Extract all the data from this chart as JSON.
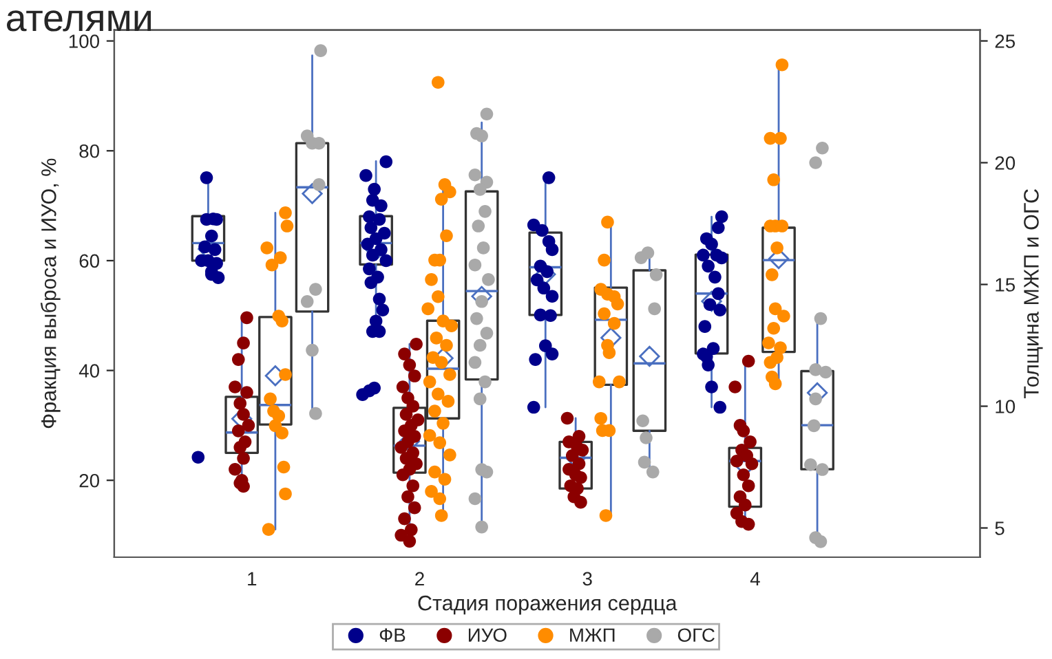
{
  "chart_data": {
    "type": "box",
    "title": "ателями",
    "xlabel": "Стадия поражения сердца",
    "ylabel": "Фракция выброса и ИУО, %",
    "y2label": "Толщина МЖП и ОГС",
    "xlim": [
      0.18,
      5.34
    ],
    "xticks": [
      1,
      2,
      3,
      4
    ],
    "ylim": [
      6,
      102
    ],
    "yticks": [
      20,
      40,
      60,
      80,
      100
    ],
    "y2lim": [
      3.8,
      25.45
    ],
    "y2ticks": [
      5,
      10,
      15,
      20,
      25
    ],
    "grid": false,
    "legend": "bottom",
    "marker": "circle",
    "series": [
      {
        "color": "#333333",
        "x": [
          0.74,
          1.74,
          2.75,
          3.74
        ],
        "boxes": [
          {
            "low": 56.9,
            "q1": 60.0,
            "median": 63.2,
            "q3": 68.1,
            "high": 75.1,
            "mean": 62.1
          },
          {
            "low": 47.1,
            "q1": 59.3,
            "median": 63.2,
            "q3": 68.1,
            "high": 78.1,
            "mean": 61.9
          },
          {
            "low": 33.3,
            "q1": 50.1,
            "median": 58.8,
            "q3": 65.1,
            "high": 75.1,
            "mean": 57.5
          },
          {
            "low": 33.3,
            "q1": 43.1,
            "median": 54.0,
            "q3": 61.1,
            "high": 68.0,
            "mean": 52.6
          }
        ]
      },
      {
        "color": "#333333",
        "x": [
          0.94,
          1.94,
          2.93,
          3.94
        ],
        "boxes": [
          {
            "low": 18.9,
            "q1": 25.0,
            "median": 28.7,
            "q3": 35.2,
            "high": 49.6,
            "mean": 31.2
          },
          {
            "low": 8.9,
            "q1": 21.4,
            "median": 26.3,
            "q3": 33.2,
            "high": 44.8,
            "mean": 27.1
          },
          {
            "low": 16.0,
            "q1": 18.5,
            "median": 24.1,
            "q3": 27.0,
            "high": 31.3,
            "mean": 24.1
          },
          {
            "low": 12.0,
            "q1": 15.2,
            "median": 23.5,
            "q3": 25.9,
            "high": 41.7,
            "mean": 22.7
          }
        ]
      },
      {
        "axis": "y2",
        "color": "#333333",
        "x": [
          1.14,
          2.14,
          3.14,
          4.14
        ],
        "boxes": [
          {
            "low": 4.94,
            "q1": 9.25,
            "median": 10.05,
            "q3": 13.66,
            "high": 17.94,
            "mean": 11.25
          },
          {
            "low": 5.51,
            "q1": 9.5,
            "median": 11.54,
            "q3": 13.51,
            "high": 19.07,
            "mean": 11.97
          },
          {
            "low": 5.51,
            "q1": 10.88,
            "median": 13.55,
            "q3": 14.87,
            "high": 17.56,
            "mean": 12.81
          },
          {
            "low": 10.92,
            "q1": 12.23,
            "median": 16.0,
            "q3": 17.33,
            "high": 24.02,
            "mean": 16.06
          }
        ]
      },
      {
        "axis": "y2",
        "color": "#333333",
        "x": [
          1.36,
          2.37,
          3.37,
          4.37
        ],
        "boxes": [
          {
            "low": 9.9,
            "q1": 13.89,
            "median": 18.99,
            "q3": 20.8,
            "high": 24.4,
            "mean": 18.73
          },
          {
            "low": 5.04,
            "q1": 11.1,
            "median": 14.73,
            "q3": 18.82,
            "high": 21.65,
            "mean": 14.51
          },
          {
            "low": 7.3,
            "q1": 8.99,
            "median": 11.76,
            "q3": 15.58,
            "high": 16.28,
            "mean": 12.05
          },
          {
            "low": 4.56,
            "q1": 7.41,
            "median": 9.22,
            "q3": 11.44,
            "high": 13.66,
            "mean": 10.55
          }
        ]
      },
      {
        "type": "scatter",
        "name": "ФВ",
        "color": "#00008b",
        "x": [
          0.73,
          0.73,
          0.77,
          0.79,
          0.76,
          0.72,
          0.78,
          0.74,
          0.7,
          0.79,
          0.76,
          0.8,
          0.76,
          0.68,
          1.8,
          1.68,
          1.73,
          1.72,
          1.77,
          1.7,
          1.76,
          1.71,
          1.79,
          1.74,
          1.69,
          1.77,
          1.72,
          1.8,
          1.7,
          1.75,
          1.71,
          1.76,
          1.78,
          1.74,
          1.72,
          1.76,
          1.66,
          1.7,
          1.73,
          2.77,
          2.68,
          2.73,
          2.77,
          2.79,
          2.72,
          2.76,
          2.7,
          2.74,
          2.79,
          2.78,
          2.72,
          2.75,
          2.69,
          2.79,
          2.68,
          3.8,
          3.78,
          3.71,
          3.74,
          3.69,
          3.77,
          3.8,
          3.72,
          3.76,
          3.78,
          3.73,
          3.79,
          3.7,
          3.75,
          3.69,
          3.71,
          3.72,
          3.74,
          3.79
        ],
        "values": [
          75.1,
          67.5,
          67.6,
          67.5,
          64.5,
          62.5,
          62,
          60,
          60,
          59.5,
          58,
          56.9,
          57.5,
          24.2,
          78,
          75.5,
          73,
          71,
          70,
          68,
          67.5,
          66,
          65,
          64,
          63,
          62,
          61,
          60,
          58.5,
          57,
          56,
          53,
          51,
          49,
          47.1,
          47.1,
          35.6,
          36.3,
          36.8,
          75.1,
          66.5,
          65.5,
          63.5,
          62,
          59,
          58,
          56.5,
          55,
          53.5,
          50,
          50.1,
          44.5,
          42,
          43,
          33.3,
          68,
          66,
          64,
          63,
          61,
          61,
          60.5,
          59,
          57,
          54,
          52,
          51,
          48,
          44,
          43,
          42.5,
          41,
          37,
          33.3
        ]
      },
      {
        "type": "scatter",
        "name": "ИУО",
        "color": "#8b0000",
        "x": [
          0.97,
          0.95,
          0.92,
          0.9,
          0.97,
          0.93,
          0.95,
          0.98,
          0.92,
          0.96,
          0.93,
          0.95,
          0.9,
          0.94,
          0.93,
          0.95,
          1.98,
          1.91,
          1.94,
          1.97,
          1.9,
          1.93,
          1.96,
          1.92,
          1.99,
          1.95,
          1.91,
          1.97,
          1.93,
          1.89,
          1.96,
          1.92,
          1.98,
          1.94,
          1.9,
          1.96,
          1.93,
          1.97,
          1.91,
          1.95,
          1.89,
          1.94,
          2.88,
          2.95,
          2.89,
          2.94,
          2.97,
          2.91,
          2.95,
          2.89,
          2.93,
          2.96,
          2.9,
          2.94,
          2.92,
          2.96,
          3.96,
          3.88,
          3.91,
          3.93,
          3.97,
          3.92,
          3.95,
          3.89,
          3.98,
          3.93,
          3.96,
          3.91,
          3.94,
          3.89,
          3.92,
          3.96
        ],
        "values": [
          49.6,
          45,
          42,
          37,
          36,
          34,
          32,
          30,
          29,
          27,
          26,
          24,
          22,
          20,
          19.5,
          18.9,
          44.8,
          43,
          41,
          39,
          37,
          35,
          33.5,
          32,
          31,
          30,
          29,
          28,
          27,
          26,
          25,
          24,
          23,
          22,
          21,
          19,
          17,
          15,
          13,
          11,
          10,
          8.9,
          31.3,
          28,
          27,
          26,
          25.5,
          24.5,
          23,
          22,
          21,
          20.5,
          19,
          18.5,
          17,
          16,
          41.7,
          37,
          30,
          29,
          27,
          25.5,
          24.5,
          23.5,
          23,
          21,
          19,
          17,
          15.5,
          14,
          12.5,
          12
        ]
      },
      {
        "type": "scatter",
        "name": "МЖП",
        "color": "#ff8c00",
        "axis": "y2",
        "x": [
          1.2,
          1.21,
          1.09,
          1.12,
          1.17,
          1.16,
          1.18,
          1.2,
          1.11,
          1.13,
          1.16,
          1.14,
          1.18,
          1.19,
          1.2,
          1.1,
          2.11,
          2.15,
          2.18,
          2.13,
          2.16,
          2.09,
          2.12,
          2.07,
          2.11,
          2.05,
          2.14,
          2.19,
          2.1,
          2.16,
          2.08,
          2.13,
          2.18,
          2.06,
          2.11,
          2.17,
          2.09,
          2.14,
          2.06,
          2.12,
          2.18,
          2.09,
          2.15,
          2.07,
          2.12,
          2.13,
          3.12,
          3.1,
          3.08,
          3.12,
          3.16,
          3.18,
          3.1,
          3.16,
          3.12,
          3.13,
          3.07,
          3.19,
          3.08,
          3.09,
          3.13,
          3.11,
          4.16,
          4.09,
          4.15,
          4.11,
          4.09,
          4.12,
          4.16,
          4.13,
          4.1,
          4.12,
          4.17,
          4.11,
          4.08,
          4.15,
          4.13,
          4.09,
          4.1,
          4.12
        ],
        "values": [
          17.94,
          17.4,
          16.5,
          15.8,
          16.1,
          13.7,
          13.5,
          11.3,
          10.3,
          9.8,
          9.6,
          9.2,
          8.9,
          7.5,
          6.4,
          4.94,
          23.3,
          19.1,
          18.8,
          18.5,
          17,
          16,
          16,
          15.2,
          14.5,
          14,
          13.5,
          13.3,
          12.8,
          12.5,
          12,
          11.8,
          11.3,
          11,
          10.5,
          10.2,
          9.8,
          9.3,
          8.8,
          8.5,
          8,
          7.3,
          7,
          6.5,
          6.2,
          5.51,
          17.56,
          16,
          14.8,
          14.6,
          14.5,
          14.2,
          13.8,
          13.4,
          12.5,
          12.2,
          11,
          11,
          9.5,
          9,
          9,
          5.51,
          24.02,
          21,
          21,
          19.3,
          17.4,
          17.4,
          17.4,
          16.5,
          15.4,
          14,
          13.7,
          13.2,
          12.6,
          12.4,
          12,
          11.8,
          11.2,
          10.92
        ]
      },
      {
        "type": "scatter",
        "name": "ОГС",
        "color": "#a9a9a9",
        "axis": "y2",
        "x": [
          1.41,
          1.33,
          1.36,
          1.4,
          1.4,
          1.38,
          1.33,
          1.36,
          1.38,
          2.4,
          2.34,
          2.37,
          2.33,
          2.4,
          2.36,
          2.39,
          2.35,
          2.38,
          2.33,
          2.41,
          2.37,
          2.34,
          2.4,
          2.36,
          2.33,
          2.39,
          2.36,
          2.4,
          2.37,
          2.33,
          2.37,
          3.32,
          3.36,
          3.41,
          3.4,
          3.33,
          3.35,
          3.34,
          3.39,
          4.4,
          4.36,
          4.39,
          4.36,
          4.42,
          4.36,
          4.35,
          4.33,
          4.4,
          4.36,
          4.39
        ],
        "values": [
          24.6,
          21.1,
          20.8,
          20.8,
          19.1,
          14.8,
          14.3,
          12.3,
          9.7,
          22,
          21.2,
          21.1,
          19.5,
          19.2,
          18.9,
          18,
          17.4,
          16.5,
          15.8,
          15.2,
          14.3,
          13.6,
          13,
          12.5,
          11.8,
          11,
          10.3,
          7.3,
          7.4,
          6.2,
          5.04,
          16.1,
          16.3,
          15.4,
          14.0,
          9.4,
          8.7,
          7.7,
          7.3,
          20.6,
          20.0,
          13.6,
          11.5,
          11.4,
          10.3,
          9.2,
          7.6,
          7.4,
          4.6,
          4.44
        ]
      }
    ]
  }
}
